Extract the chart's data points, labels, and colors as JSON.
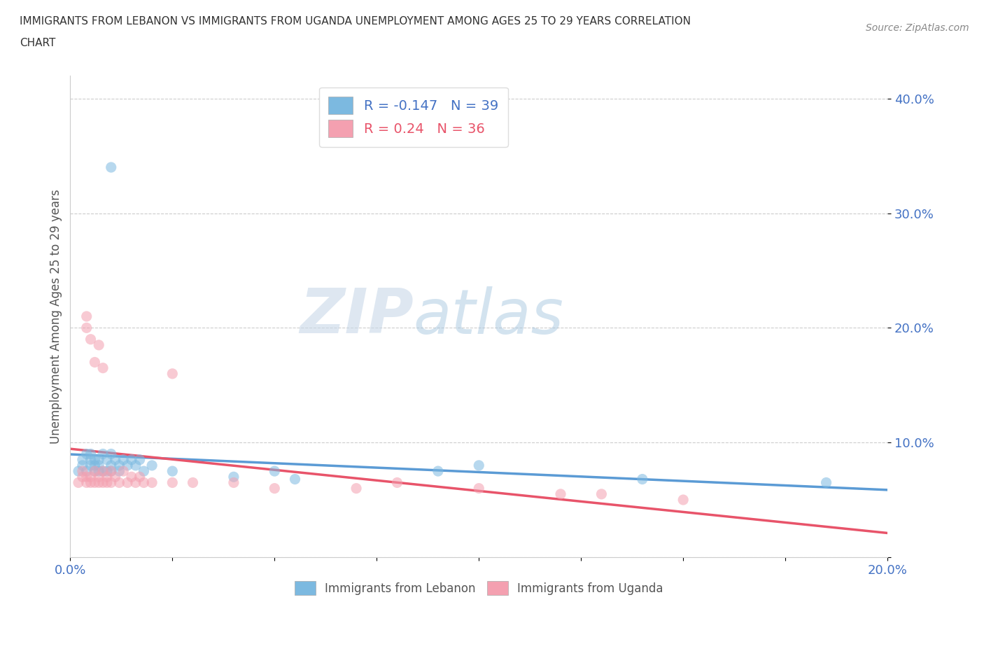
{
  "title_line1": "IMMIGRANTS FROM LEBANON VS IMMIGRANTS FROM UGANDA UNEMPLOYMENT AMONG AGES 25 TO 29 YEARS CORRELATION",
  "title_line2": "CHART",
  "source_text": "Source: ZipAtlas.com",
  "ylabel": "Unemployment Among Ages 25 to 29 years",
  "xlim": [
    0.0,
    0.2
  ],
  "ylim": [
    0.0,
    0.42
  ],
  "xticks": [
    0.0,
    0.025,
    0.05,
    0.075,
    0.1,
    0.125,
    0.15,
    0.175,
    0.2
  ],
  "yticks": [
    0.0,
    0.1,
    0.2,
    0.3,
    0.4
  ],
  "lebanon_color": "#7cb9e0",
  "uganda_color": "#f4a0b0",
  "lebanon_line_color": "#5b9bd5",
  "uganda_line_color": "#e8546a",
  "lebanon_R": -0.147,
  "lebanon_N": 39,
  "uganda_R": 0.24,
  "uganda_N": 36,
  "watermark_zip": "ZIP",
  "watermark_atlas": "atlas",
  "legend_label_lebanon": "Immigrants from Lebanon",
  "legend_label_uganda": "Immigrants from Uganda",
  "tick_color": "#4472c4",
  "lebanon_x": [
    0.002,
    0.003,
    0.003,
    0.004,
    0.004,
    0.005,
    0.005,
    0.005,
    0.006,
    0.006,
    0.006,
    0.007,
    0.007,
    0.007,
    0.008,
    0.008,
    0.009,
    0.009,
    0.01,
    0.01,
    0.01,
    0.011,
    0.012,
    0.012,
    0.013,
    0.014,
    0.015,
    0.016,
    0.017,
    0.018,
    0.02,
    0.025,
    0.04,
    0.05,
    0.055,
    0.09,
    0.1,
    0.14,
    0.185
  ],
  "lebanon_y": [
    0.075,
    0.08,
    0.085,
    0.09,
    0.075,
    0.08,
    0.085,
    0.09,
    0.075,
    0.08,
    0.085,
    0.075,
    0.08,
    0.085,
    0.075,
    0.09,
    0.075,
    0.085,
    0.075,
    0.08,
    0.09,
    0.085,
    0.075,
    0.08,
    0.085,
    0.08,
    0.085,
    0.08,
    0.085,
    0.075,
    0.08,
    0.075,
    0.07,
    0.075,
    0.068,
    0.075,
    0.08,
    0.068,
    0.065
  ],
  "lebanon_outlier_x": [
    0.01
  ],
  "lebanon_outlier_y": [
    0.34
  ],
  "uganda_x": [
    0.002,
    0.003,
    0.003,
    0.004,
    0.004,
    0.005,
    0.005,
    0.006,
    0.006,
    0.007,
    0.007,
    0.008,
    0.008,
    0.009,
    0.009,
    0.01,
    0.01,
    0.011,
    0.012,
    0.013,
    0.014,
    0.015,
    0.016,
    0.017,
    0.018,
    0.02,
    0.025,
    0.03,
    0.04,
    0.05,
    0.07,
    0.08,
    0.1,
    0.12,
    0.13,
    0.15
  ],
  "uganda_y": [
    0.065,
    0.07,
    0.075,
    0.065,
    0.07,
    0.065,
    0.07,
    0.065,
    0.075,
    0.065,
    0.07,
    0.065,
    0.075,
    0.065,
    0.07,
    0.065,
    0.075,
    0.07,
    0.065,
    0.075,
    0.065,
    0.07,
    0.065,
    0.07,
    0.065,
    0.065,
    0.065,
    0.065,
    0.065,
    0.06,
    0.06,
    0.065,
    0.06,
    0.055,
    0.055,
    0.05
  ],
  "uganda_outliers_x": [
    0.004,
    0.004,
    0.005,
    0.006,
    0.007,
    0.008,
    0.025
  ],
  "uganda_outliers_y": [
    0.2,
    0.21,
    0.19,
    0.17,
    0.185,
    0.165,
    0.16
  ]
}
